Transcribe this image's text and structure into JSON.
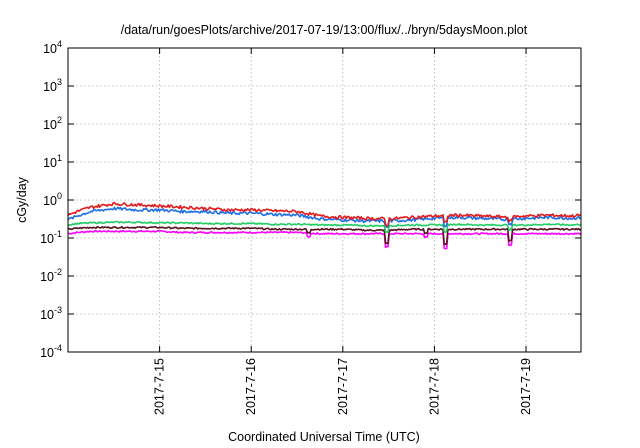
{
  "chart_data": {
    "type": "line",
    "title": "/data/run/goesPlots/archive/2017-07-19/13:00/flux/../bryn/5daysMoon.plot",
    "xlabel": "Coordinated Universal Time (UTC)",
    "ylabel": "cGy/day",
    "yscale": "log",
    "ylim": [
      0.0001,
      10000
    ],
    "xlim_days": [
      0,
      5.6
    ],
    "grid": true,
    "y_ticks": [
      {
        "base": "10",
        "exp": "-4",
        "value": 0.0001
      },
      {
        "base": "10",
        "exp": "-3",
        "value": 0.001
      },
      {
        "base": "10",
        "exp": "-2",
        "value": 0.01
      },
      {
        "base": "10",
        "exp": "-1",
        "value": 0.1
      },
      {
        "base": "10",
        "exp": "0",
        "value": 1
      },
      {
        "base": "10",
        "exp": "1",
        "value": 10
      },
      {
        "base": "10",
        "exp": "2",
        "value": 100
      },
      {
        "base": "10",
        "exp": "3",
        "value": 1000
      },
      {
        "base": "10",
        "exp": "4",
        "value": 10000
      }
    ],
    "x_ticks": [
      {
        "label": "2017-7-15",
        "day": 1
      },
      {
        "label": "2017-7-16",
        "day": 2
      },
      {
        "label": "2017-7-17",
        "day": 3
      },
      {
        "label": "2017-7-18",
        "day": 4
      },
      {
        "label": "2017-7-19",
        "day": 5
      }
    ],
    "x": [
      0,
      0.1,
      0.25,
      0.5,
      0.75,
      1.0,
      1.25,
      1.5,
      1.75,
      2.0,
      2.25,
      2.5,
      2.75,
      3.0,
      3.25,
      3.5,
      3.75,
      4.0,
      4.25,
      4.5,
      4.75,
      5.0,
      5.25,
      5.5,
      5.6
    ],
    "series": [
      {
        "name": "red",
        "color": "#e41a1c",
        "values": [
          0.4,
          0.5,
          0.65,
          0.8,
          0.75,
          0.7,
          0.65,
          0.6,
          0.55,
          0.55,
          0.52,
          0.5,
          0.38,
          0.35,
          0.33,
          0.32,
          0.35,
          0.38,
          0.4,
          0.38,
          0.36,
          0.38,
          0.4,
          0.38,
          0.4
        ]
      },
      {
        "name": "blue",
        "color": "#1f6fe6",
        "values": [
          0.3,
          0.38,
          0.5,
          0.6,
          0.55,
          0.55,
          0.5,
          0.5,
          0.45,
          0.45,
          0.42,
          0.4,
          0.32,
          0.3,
          0.28,
          0.28,
          0.3,
          0.33,
          0.35,
          0.33,
          0.31,
          0.33,
          0.35,
          0.33,
          0.35
        ]
      },
      {
        "name": "green",
        "color": "#22cc66",
        "values": [
          0.22,
          0.24,
          0.25,
          0.26,
          0.26,
          0.25,
          0.25,
          0.24,
          0.24,
          0.24,
          0.23,
          0.23,
          0.22,
          0.22,
          0.21,
          0.21,
          0.22,
          0.22,
          0.23,
          0.22,
          0.22,
          0.22,
          0.23,
          0.22,
          0.23
        ]
      },
      {
        "name": "dark",
        "color": "#5a1020",
        "values": [
          0.17,
          0.18,
          0.19,
          0.19,
          0.19,
          0.19,
          0.18,
          0.18,
          0.18,
          0.18,
          0.17,
          0.17,
          0.17,
          0.17,
          0.16,
          0.16,
          0.17,
          0.17,
          0.17,
          0.17,
          0.17,
          0.17,
          0.17,
          0.17,
          0.17
        ]
      },
      {
        "name": "magenta",
        "color": "#ff00ff",
        "values": [
          0.13,
          0.14,
          0.15,
          0.15,
          0.15,
          0.15,
          0.14,
          0.14,
          0.14,
          0.14,
          0.14,
          0.14,
          0.13,
          0.13,
          0.13,
          0.13,
          0.13,
          0.13,
          0.13,
          0.13,
          0.13,
          0.13,
          0.13,
          0.13,
          0.13
        ]
      }
    ]
  }
}
